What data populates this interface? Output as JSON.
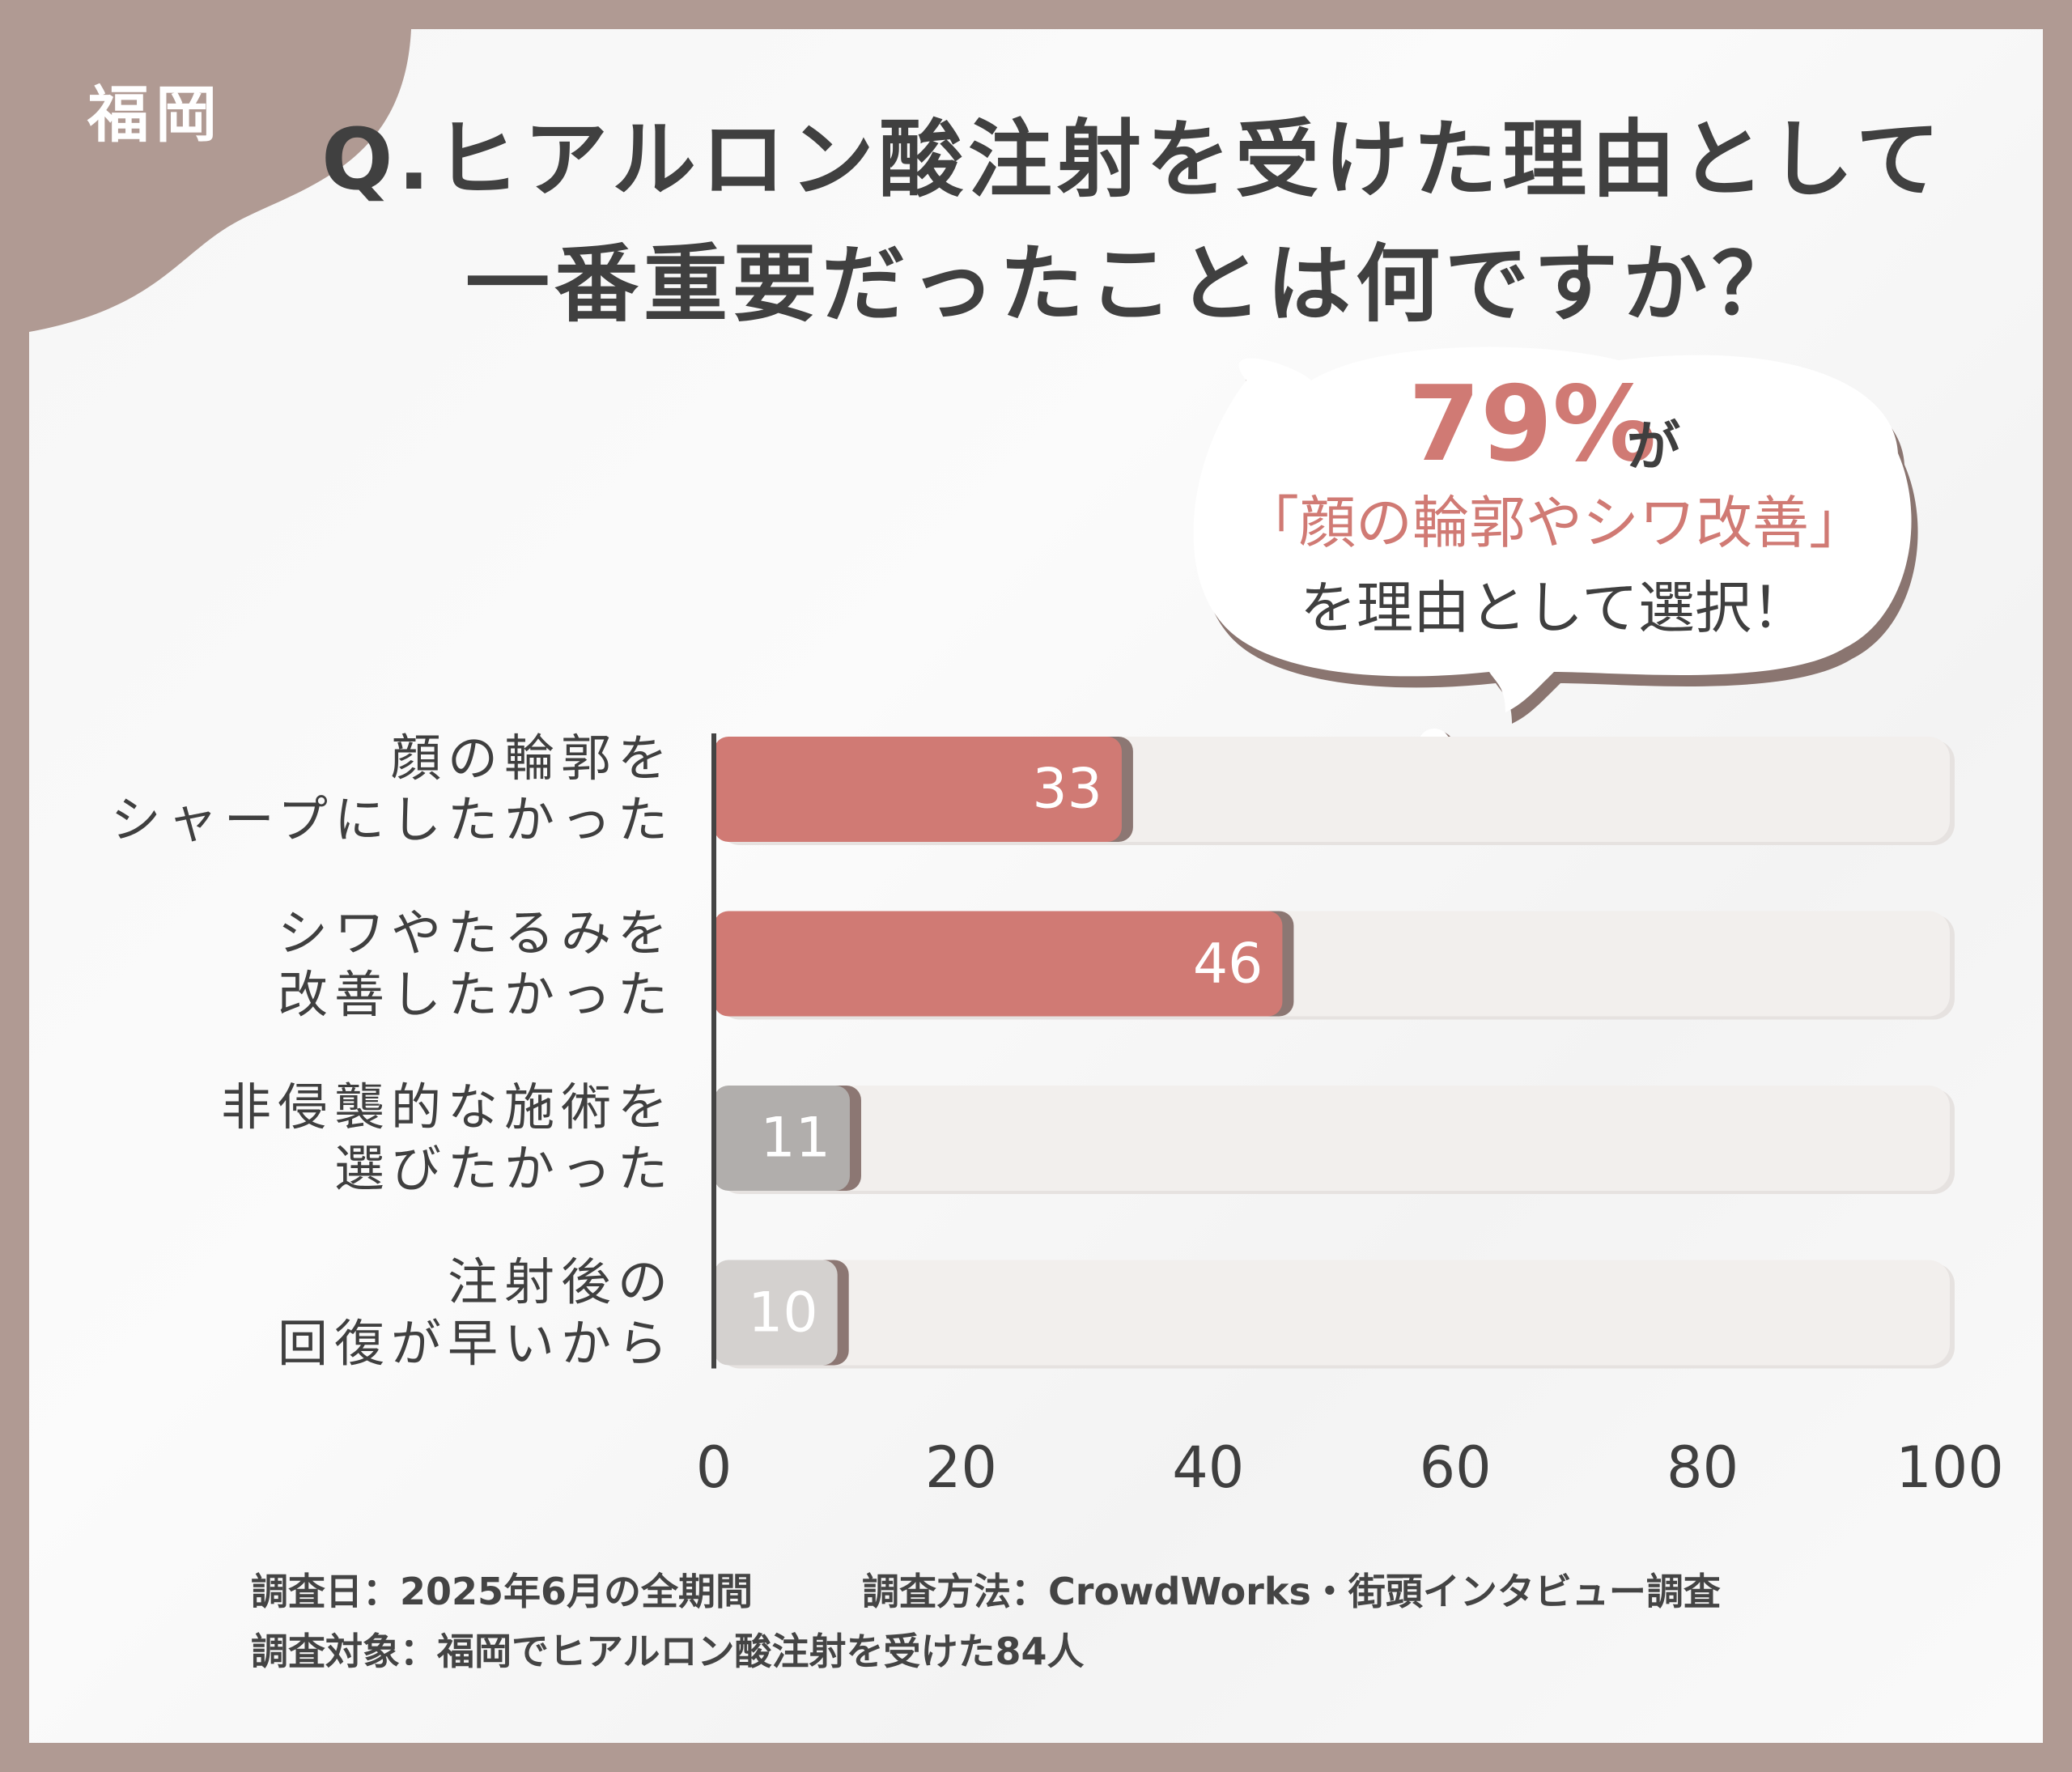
{
  "badge": "福岡",
  "chart_data": {
    "type": "bar",
    "orientation": "horizontal",
    "title": "Q.ヒアルロン酸注射を受けた理由として\n一番重要だったことは何ですか？",
    "categories": [
      "顔の輪郭を\nシャープにしたかった",
      "シワやたるみを\n改善したかった",
      "非侵襲的な施術を\n選びたかった",
      "注射後の\n回復が早いから"
    ],
    "values": [
      33,
      46,
      11,
      10
    ],
    "colors": [
      "#d07a74",
      "#d07a74",
      "#b1aeac",
      "#d4d1cf"
    ],
    "track_color": "#f2efed",
    "xlim": [
      0,
      100
    ],
    "xticks": [
      0,
      20,
      40,
      60,
      80,
      100
    ],
    "callout": {
      "highlight": "79%",
      "highlight_suffix": "が",
      "line2": "「顔の輪郭やシワ改善」",
      "line3": "を理由として選択！"
    }
  },
  "footer": {
    "line1a": "調査日：2025年6月の全期間",
    "line1b": "調査方法：CrowdWorks・街頭インタビュー調査",
    "line2": "調査対象：福岡でヒアルロン酸注射を受けた84人"
  }
}
